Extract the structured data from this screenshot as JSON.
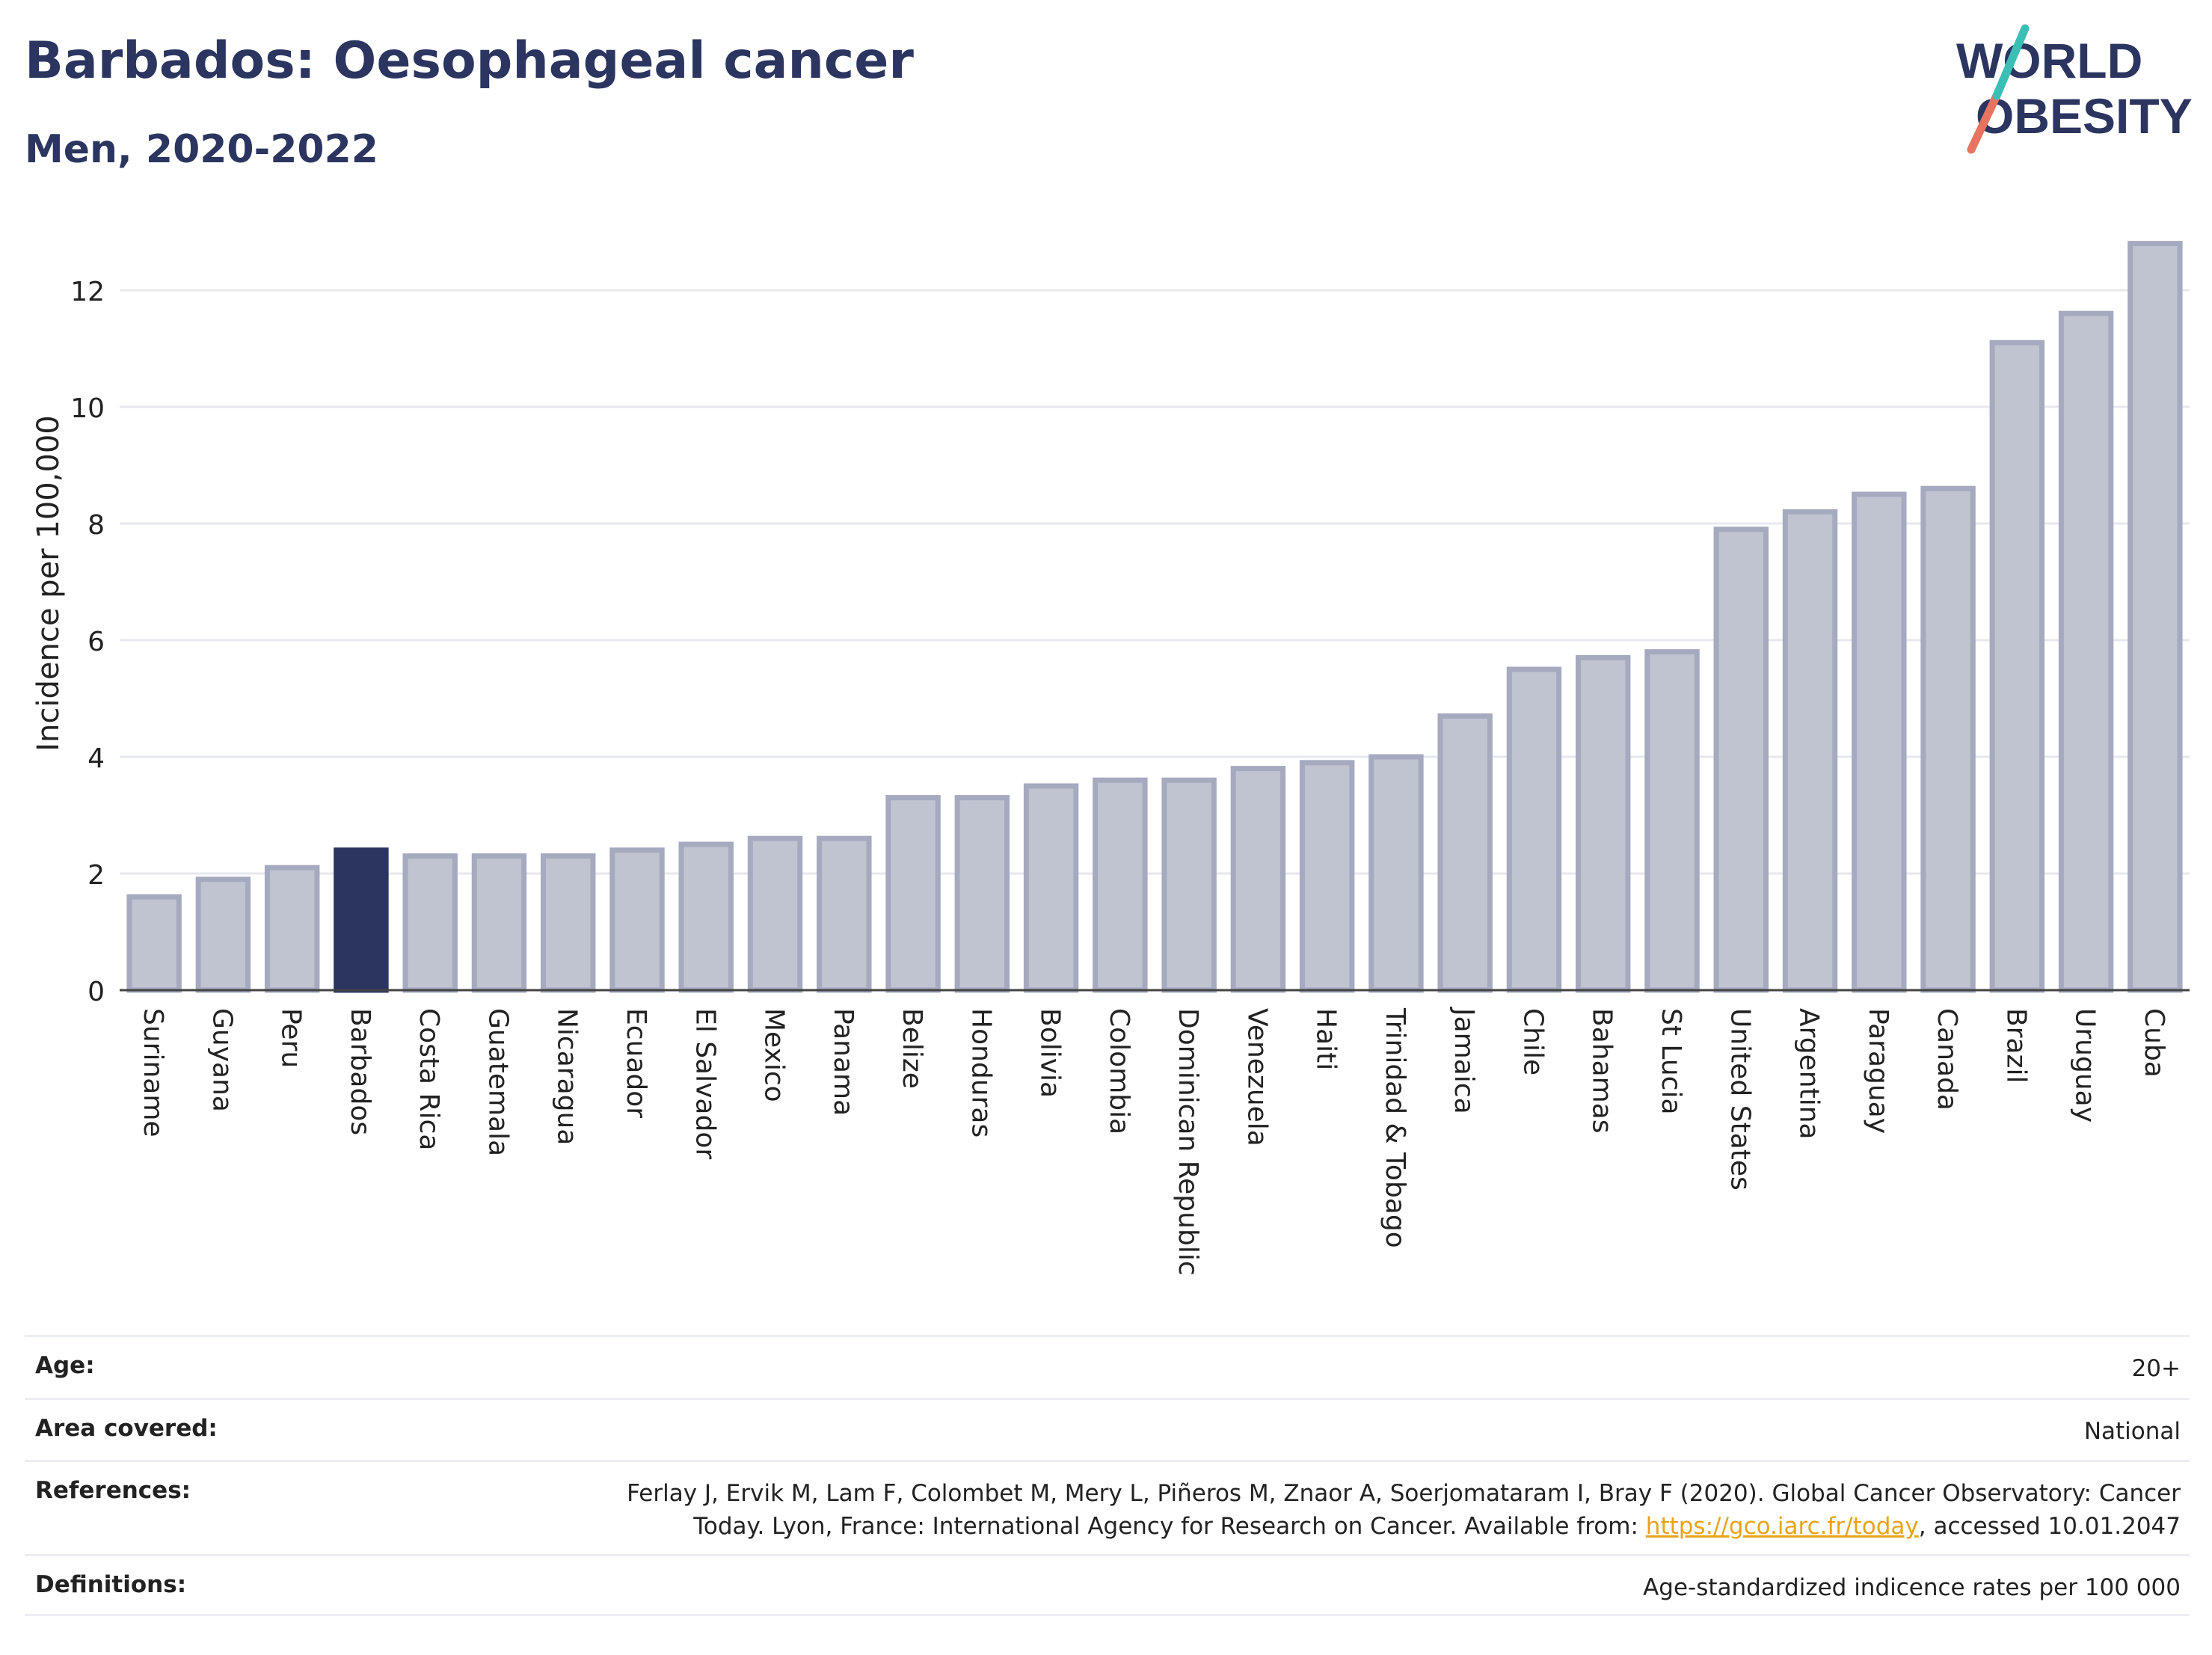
{
  "header": {
    "title": "Barbados: Oesophageal cancer",
    "subtitle": "Men, 2020-2022"
  },
  "logo": {
    "line1": "WORLD",
    "line2": "OBESITY"
  },
  "chart_data": {
    "type": "bar",
    "ylabel": "Incidence per 100,000",
    "ylim": [
      0,
      13
    ],
    "yticks": [
      0,
      2,
      4,
      6,
      8,
      10,
      12
    ],
    "grid": true,
    "highlight": "Barbados",
    "categories": [
      "Suriname",
      "Guyana",
      "Peru",
      "Barbados",
      "Costa Rica",
      "Guatemala",
      "Nicaragua",
      "Ecuador",
      "El Salvador",
      "Mexico",
      "Panama",
      "Belize",
      "Honduras",
      "Bolivia",
      "Colombia",
      "Dominican Republic",
      "Venezuela",
      "Haiti",
      "Trinidad & Tobago",
      "Jamaica",
      "Chile",
      "Bahamas",
      "St Lucia",
      "United States",
      "Argentina",
      "Paraguay",
      "Canada",
      "Brazil",
      "Uruguay",
      "Cuba"
    ],
    "values": [
      1.6,
      1.9,
      2.1,
      2.4,
      2.3,
      2.3,
      2.3,
      2.4,
      2.5,
      2.6,
      2.6,
      3.3,
      3.3,
      3.5,
      3.6,
      3.6,
      3.8,
      3.9,
      4.0,
      4.7,
      5.5,
      5.7,
      5.8,
      7.9,
      8.2,
      8.5,
      8.6,
      11.1,
      11.6,
      12.8
    ],
    "colors": {
      "highlight": "#2b3560",
      "bar_fill": "#c0c3d0",
      "bar_stroke": "#a5aabf"
    }
  },
  "info": {
    "age_label": "Age:",
    "age_value": "20+",
    "area_label": "Area covered:",
    "area_value": "National",
    "references_label": "References:",
    "references_line1": "Ferlay J, Ervik M, Lam F, Colombet M, Mery L, Piñeros M, Znaor A, Soerjomataram I, Bray F (2020). Global Cancer Observatory: Cancer",
    "references_line2_pre": "Today. Lyon, France: International Agency for Research on Cancer. Available from: ",
    "references_link": "https://gco.iarc.fr/today",
    "references_line2_post": ", accessed 10.01.2047",
    "definitions_label": "Definitions:",
    "definitions_value": "Age-standardized indicence rates per 100 000"
  }
}
